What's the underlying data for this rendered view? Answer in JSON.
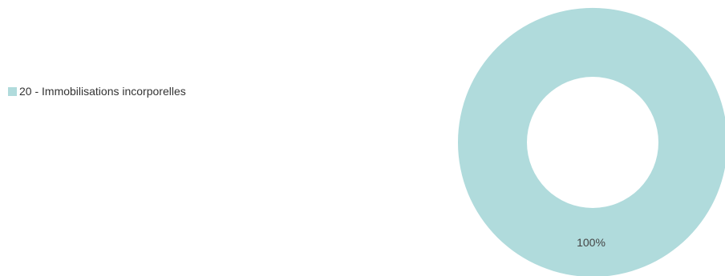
{
  "chart_data": {
    "type": "pie",
    "variant": "donut",
    "title": "",
    "categories": [
      "20 - Immobilisations incorporelles"
    ],
    "values": [
      100
    ],
    "data_labels": [
      "100%"
    ],
    "legend": {
      "placement": "left",
      "entries": [
        "20 - Immobilisations incorporelles"
      ]
    },
    "colors": [
      "#b0dbdc"
    ]
  }
}
